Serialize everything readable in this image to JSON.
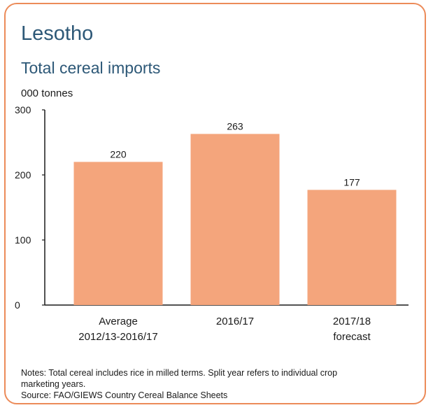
{
  "title": "Lesotho",
  "subtitle": "Total cereal imports",
  "unit": "000 tonnes",
  "notes": {
    "line1": "Notes: Total cereal includes rice in milled terms. Split year refers to individual crop",
    "line2": "marketing years.",
    "source": "Source: FAO/GIEWS Country Cereal Balance Sheets"
  },
  "colors": {
    "bar": "#f4a57c",
    "border": "#ec8b59",
    "title": "#2d5877"
  },
  "chart_data": {
    "type": "bar",
    "title": "Lesotho",
    "subtitle": "Total cereal imports",
    "ylabel": "000 tonnes",
    "ylim": [
      0,
      300
    ],
    "yticks": [
      0,
      100,
      200,
      300
    ],
    "grid": false,
    "categories": [
      [
        "Average",
        "2012/13-2016/17"
      ],
      [
        "2016/17"
      ],
      [
        "2017/18",
        "forecast"
      ]
    ],
    "values": [
      220,
      263,
      177
    ]
  }
}
